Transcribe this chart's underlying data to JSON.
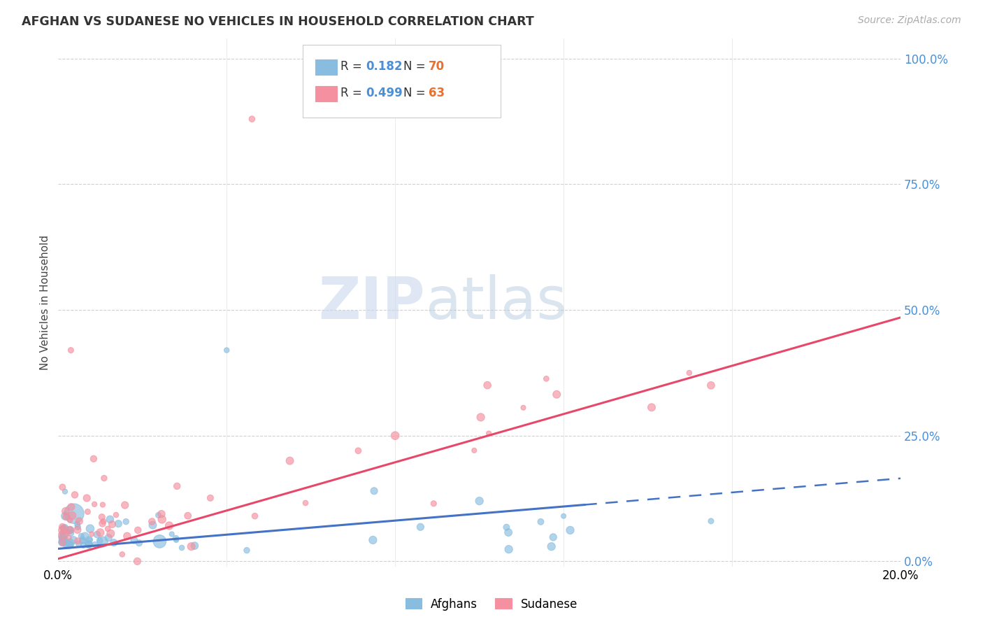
{
  "title": "AFGHAN VS SUDANESE NO VEHICLES IN HOUSEHOLD CORRELATION CHART",
  "source": "Source: ZipAtlas.com",
  "ylabel": "No Vehicles in Household",
  "ytick_labels": [
    "0.0%",
    "25.0%",
    "50.0%",
    "75.0%",
    "100.0%"
  ],
  "ytick_values": [
    0.0,
    0.25,
    0.5,
    0.75,
    1.0
  ],
  "xmin": 0.0,
  "xmax": 0.2,
  "ymin": -0.01,
  "ymax": 1.04,
  "afghan_color": "#89bde0",
  "sudanese_color": "#f4909f",
  "afghan_line_color": "#4472c4",
  "sudanese_line_color": "#e8476a",
  "afghan_line_solid_end": 0.125,
  "afghan_slope": 0.7,
  "afghan_intercept": 0.025,
  "sudanese_slope": 2.4,
  "sudanese_intercept": 0.005,
  "watermark_zip": "ZIP",
  "watermark_atlas": "atlas",
  "grid_color": "#d0d0d0",
  "title_color": "#333333",
  "source_color": "#aaaaaa",
  "ytick_color": "#4a90d9",
  "legend_r_color": "#333333",
  "legend_n_color": "#e87030"
}
